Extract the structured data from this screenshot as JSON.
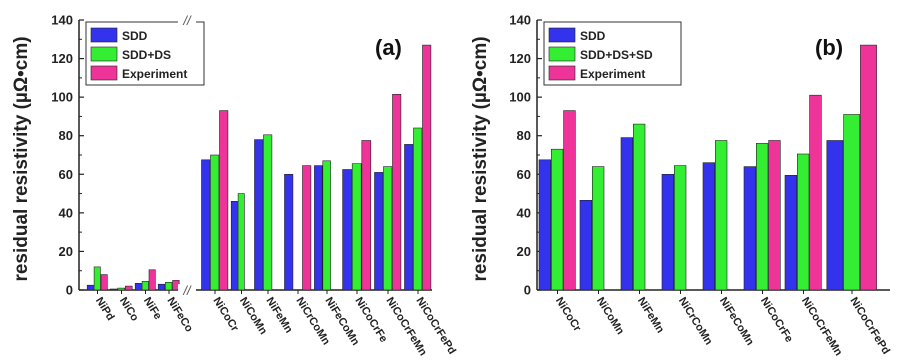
{
  "colors": {
    "SDD": "#3333ee",
    "SDD+DS": "#33ee33",
    "SDD+DS+SD": "#33ee33",
    "Experiment": "#ee3399",
    "axis": "#222222",
    "break_mark": "#555555"
  },
  "chart_data": [
    {
      "type": "bar",
      "panel_label": "(a)",
      "ylabel": "residual resistivity (µΩ•cm)",
      "ylim": [
        0,
        140
      ],
      "yticks": [
        0,
        20,
        40,
        60,
        80,
        100,
        120,
        140
      ],
      "axis_break": "//",
      "grid": false,
      "legend_placement": "top-left",
      "categories": [
        "NiPd",
        "NiCo",
        "NiFe",
        "NiFeCo",
        "NiCoCr",
        "NiCoMn",
        "NiFeMn",
        "NiCrCoMn",
        "NiFeCoMn",
        "NiCoCrFe",
        "NiCoCrFeMn",
        "NiCoCrFePd"
      ],
      "series": [
        {
          "name": "SDD",
          "values": [
            2.5,
            0.5,
            3.5,
            3,
            67.5,
            46,
            78,
            60,
            64.5,
            62.5,
            61,
            75.5
          ]
        },
        {
          "name": "SDD+DS",
          "values": [
            12,
            1,
            4.5,
            4,
            70,
            50,
            80.5,
            null,
            67,
            65.5,
            64,
            84
          ]
        },
        {
          "name": "Experiment",
          "values": [
            8,
            2,
            10.5,
            5,
            93,
            null,
            null,
            64.5,
            null,
            77.5,
            101.5,
            127
          ]
        }
      ]
    },
    {
      "type": "bar",
      "panel_label": "(b)",
      "ylabel": "residual resistivity (µΩ•cm)",
      "ylim": [
        0,
        140
      ],
      "yticks": [
        0,
        20,
        40,
        60,
        80,
        100,
        120,
        140
      ],
      "grid": false,
      "legend_placement": "top-left",
      "categories": [
        "NiCoCr",
        "NiCoMn",
        "NiFeMn",
        "NiCrCoMn",
        "NiFeCoMn",
        "NiCoCrFe",
        "NiCoCrFeMn",
        "NiCoCrFePd"
      ],
      "series": [
        {
          "name": "SDD",
          "values": [
            67.5,
            46.5,
            79,
            60,
            66,
            64,
            59.5,
            77.5
          ]
        },
        {
          "name": "SDD+DS+SD",
          "values": [
            73,
            64,
            86,
            64.5,
            77.5,
            76,
            70.5,
            91
          ]
        },
        {
          "name": "Experiment",
          "values": [
            93,
            null,
            null,
            null,
            null,
            77.5,
            101,
            127
          ]
        }
      ]
    }
  ]
}
